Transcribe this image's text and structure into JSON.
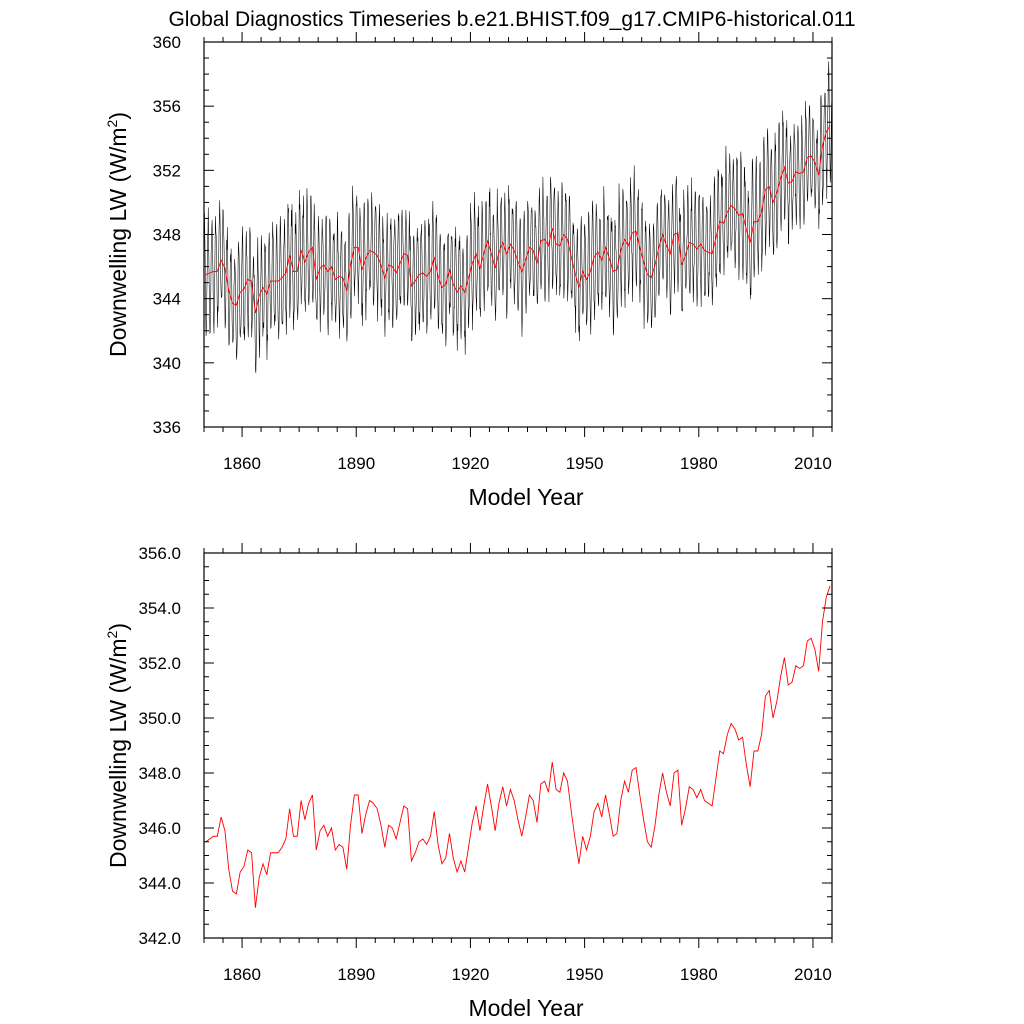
{
  "title": "Global Diagnostics Timeseries b.e21.BHIST.f09_g17.CMIP6-historical.011",
  "colors": {
    "monthly": "#000000",
    "annual": "#ff0000",
    "axes": "#000000"
  },
  "chart_data": [
    {
      "type": "line",
      "xlabel": "Model Year",
      "ylabel": {
        "main": "Downwelling LW (W/m",
        "sup": "2",
        "close": ")"
      },
      "xlim": [
        1850,
        2015
      ],
      "ylim": [
        336,
        360
      ],
      "xticks": [
        1860,
        1890,
        1920,
        1950,
        1980,
        2010
      ],
      "xtick_labels": [
        "1860",
        "1890",
        "1920",
        "1950",
        "1980",
        "2010"
      ],
      "yticks": [
        336,
        340,
        344,
        348,
        352,
        356,
        360
      ],
      "ytick_labels": [
        "336",
        "340",
        "344",
        "348",
        "352",
        "356",
        "360"
      ],
      "series": [
        {
          "style": "monthly",
          "color": "#000000",
          "description_values": "monthly values oscillate around the annual mean with a seasonal amplitude of about 2.5-3 W/m2; approximate envelope from 338.6 (min, ~1864) to 358.1 (max, ~2013)"
        },
        {
          "style": "annual",
          "color": "#ff0000",
          "source": "annual"
        }
      ]
    },
    {
      "type": "line",
      "xlabel": "Model Year",
      "ylabel": {
        "main": "Downwelling LW (W/m",
        "sup": "2",
        "close": ")"
      },
      "xlim": [
        1850,
        2015
      ],
      "ylim": [
        342,
        356
      ],
      "xticks": [
        1860,
        1890,
        1920,
        1950,
        1980,
        2010
      ],
      "xtick_labels": [
        "1860",
        "1890",
        "1920",
        "1950",
        "1980",
        "2010"
      ],
      "yticks": [
        342,
        344,
        346,
        348,
        350,
        352,
        354,
        356
      ],
      "ytick_labels": [
        "342.0",
        "344.0",
        "346.0",
        "348.0",
        "350.0",
        "352.0",
        "354.0",
        "356.0"
      ],
      "series": [
        {
          "style": "annual",
          "color": "#ff0000",
          "source": "annual"
        }
      ]
    }
  ],
  "annual": {
    "x_start": 1850,
    "x_step": 1,
    "values": [
      345.5,
      345.6,
      345.7,
      345.7,
      346.4,
      345.9,
      344.5,
      343.7,
      343.6,
      344.4,
      344.6,
      345.2,
      345.1,
      343.1,
      344.2,
      344.7,
      344.3,
      345.1,
      345.1,
      345.1,
      345.3,
      345.6,
      346.7,
      345.7,
      345.7,
      347.0,
      346.3,
      346.9,
      347.2,
      345.2,
      345.9,
      346.1,
      345.7,
      346.0,
      345.2,
      345.4,
      345.3,
      344.5,
      346.1,
      347.2,
      347.2,
      345.8,
      346.5,
      347.0,
      346.9,
      346.7,
      346.1,
      345.3,
      346.1,
      346.0,
      345.6,
      346.2,
      346.8,
      346.7,
      344.8,
      345.1,
      345.5,
      345.6,
      345.4,
      345.7,
      346.6,
      345.4,
      344.7,
      344.9,
      345.8,
      344.9,
      344.4,
      344.8,
      344.4,
      345.3,
      346.2,
      346.8,
      345.9,
      346.8,
      347.6,
      346.8,
      345.9,
      346.9,
      347.5,
      346.8,
      347.4,
      347.0,
      346.3,
      345.7,
      346.4,
      347.2,
      347.0,
      346.2,
      347.6,
      347.7,
      347.3,
      348.4,
      347.4,
      347.3,
      348.0,
      347.7,
      346.6,
      345.6,
      344.7,
      345.7,
      345.2,
      345.7,
      346.6,
      346.9,
      346.4,
      347.2,
      346.5,
      345.7,
      345.8,
      347.0,
      347.7,
      347.3,
      348.1,
      348.2,
      347.2,
      346.3,
      345.5,
      345.3,
      346.1,
      347.2,
      348.0,
      347.3,
      346.8,
      348.0,
      348.1,
      346.1,
      346.7,
      347.5,
      347.4,
      347.1,
      347.4,
      347.0,
      346.9,
      346.8,
      347.8,
      348.8,
      348.7,
      349.4,
      349.8,
      349.6,
      349.2,
      349.3,
      348.3,
      347.5,
      348.8,
      348.8,
      349.4,
      350.8,
      351.0,
      350.0,
      350.6,
      351.5,
      352.2,
      351.2,
      351.3,
      351.9,
      351.8,
      351.9,
      352.8,
      352.9,
      352.5,
      351.7,
      353.5,
      354.4,
      354.8
    ]
  }
}
